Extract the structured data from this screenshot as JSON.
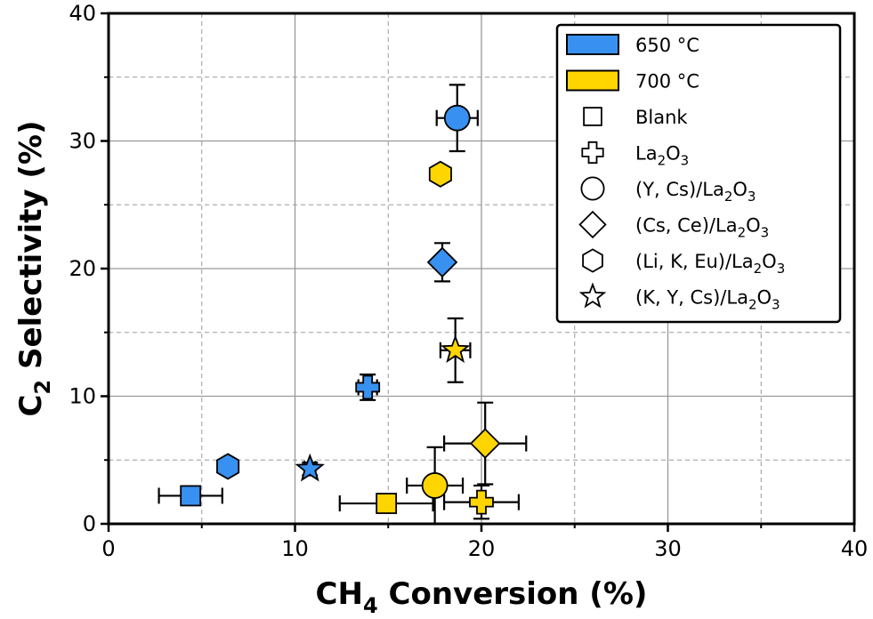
{
  "chart_data": {
    "type": "scatter",
    "xlabel": {
      "main": "CH",
      "sub": "4",
      "rest": " Conversion (%)"
    },
    "ylabel": {
      "main": "C",
      "sub": "2",
      "rest": " Selectivity (%)"
    },
    "xlim": [
      0,
      40
    ],
    "ylim": [
      0,
      40
    ],
    "xticks": [
      0,
      10,
      20,
      30,
      40
    ],
    "yticks": [
      0,
      10,
      20,
      30,
      40
    ],
    "xticks_minor": [
      5,
      15,
      25,
      35
    ],
    "yticks_minor": [
      5,
      15,
      25,
      35
    ],
    "grid": true,
    "legend_position": "top-right",
    "temperatures": [
      {
        "label": "650 °C",
        "color": "#3891f0"
      },
      {
        "label": "700 °C",
        "color": "#ffd500"
      }
    ],
    "catalysts": [
      {
        "marker": "square",
        "parts": [
          [
            "Blank",
            "n"
          ]
        ]
      },
      {
        "marker": "plus",
        "parts": [
          [
            "La",
            "n"
          ],
          [
            "2",
            "s"
          ],
          [
            "O",
            "n"
          ],
          [
            "3",
            "s"
          ]
        ]
      },
      {
        "marker": "circle",
        "parts": [
          [
            "(Y, Cs)/La",
            "n"
          ],
          [
            "2",
            "s"
          ],
          [
            "O",
            "n"
          ],
          [
            "3",
            "s"
          ]
        ]
      },
      {
        "marker": "diamond",
        "parts": [
          [
            "(Cs, Ce)/La",
            "n"
          ],
          [
            "2",
            "s"
          ],
          [
            "O",
            "n"
          ],
          [
            "3",
            "s"
          ]
        ]
      },
      {
        "marker": "hexagon",
        "parts": [
          [
            "(Li, K, Eu)/La",
            "n"
          ],
          [
            "2",
            "s"
          ],
          [
            "O",
            "n"
          ],
          [
            "3",
            "s"
          ]
        ]
      },
      {
        "marker": "star",
        "parts": [
          [
            "(K, Y, Cs)/La",
            "n"
          ],
          [
            "2",
            "s"
          ],
          [
            "O",
            "n"
          ],
          [
            "3",
            "s"
          ]
        ]
      }
    ],
    "points": [
      {
        "catalyst": "Blank",
        "temperature": "650 °C",
        "x": 4.4,
        "y": 2.2,
        "xerr": 1.7,
        "yerr": 0.3
      },
      {
        "catalyst": "La2O3",
        "temperature": "650 °C",
        "x": 13.9,
        "y": 10.7,
        "xerr": 0.5,
        "yerr": 1.0
      },
      {
        "catalyst": "(Y, Cs)/La2O3",
        "temperature": "650 °C",
        "x": 18.7,
        "y": 31.8,
        "xerr": 1.1,
        "yerr": 2.6
      },
      {
        "catalyst": "(Cs, Ce)/La2O3",
        "temperature": "650 °C",
        "x": 17.9,
        "y": 20.5,
        "xerr": 0.3,
        "yerr": 1.5
      },
      {
        "catalyst": "(Li, K, Eu)/La2O3",
        "temperature": "650 °C",
        "x": 6.4,
        "y": 4.5,
        "xerr": 0.2,
        "yerr": 0.3
      },
      {
        "catalyst": "(K, Y, Cs)/La2O3",
        "temperature": "650 °C",
        "x": 10.8,
        "y": 4.3,
        "xerr": 0.3,
        "yerr": 0.5
      },
      {
        "catalyst": "Blank",
        "temperature": "700 °C",
        "x": 14.9,
        "y": 1.6,
        "xerr": 2.5,
        "yerr": 0.3
      },
      {
        "catalyst": "La2O3",
        "temperature": "700 °C",
        "x": 20.0,
        "y": 1.7,
        "xerr": 2.0,
        "yerr": 1.3
      },
      {
        "catalyst": "(Y, Cs)/La2O3",
        "temperature": "700 °C",
        "x": 17.5,
        "y": 3.0,
        "xerr": 1.5,
        "yerr": 3.0
      },
      {
        "catalyst": "(Cs, Ce)/La2O3",
        "temperature": "700 °C",
        "x": 20.2,
        "y": 6.3,
        "xerr": 2.2,
        "yerr": 3.2
      },
      {
        "catalyst": "(Li, K, Eu)/La2O3",
        "temperature": "700 °C",
        "x": 17.8,
        "y": 27.4,
        "xerr": 0.3,
        "yerr": 0.6
      },
      {
        "catalyst": "(K, Y, Cs)/La2O3",
        "temperature": "700 °C",
        "x": 18.6,
        "y": 13.6,
        "xerr": 0.8,
        "yerr": 2.5
      }
    ]
  }
}
